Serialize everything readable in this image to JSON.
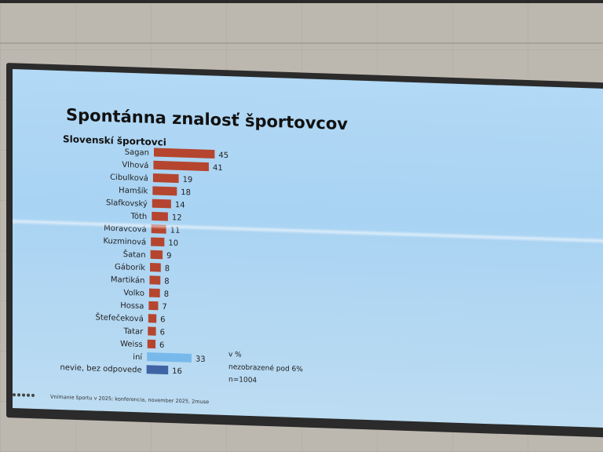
{
  "slide": {
    "title": "Spontánna znalosť športovcov",
    "subtitle": "Slovenskí športovci",
    "notes": [
      "v %",
      "nezobrazené pod 6%",
      "n=1004"
    ],
    "footer": "Vnímanie športu v 2025; konferencia, november 2025, 2muse"
  },
  "colors": {
    "primary": "#b5452f",
    "other": "#78b9ec",
    "dontknow": "#3f63a3"
  },
  "chart_data": {
    "type": "bar",
    "orientation": "horizontal",
    "categories": [
      "Sagan",
      "Vlhová",
      "Cibulková",
      "Hamšík",
      "Slafkovský",
      "Tóth",
      "Moravcová",
      "Kuzminová",
      "Šatan",
      "Gáborík",
      "Martikán",
      "Volko",
      "Hossa",
      "Štefečeková",
      "Tatar",
      "Weiss",
      "iní",
      "nevie, bez odpovede"
    ],
    "values": [
      45,
      41,
      19,
      18,
      14,
      12,
      11,
      10,
      9,
      8,
      8,
      8,
      7,
      6,
      6,
      6,
      33,
      16
    ],
    "title": "Spontánna znalosť športovcov",
    "subtitle": "Slovenskí športovci",
    "xlabel": "",
    "ylabel": "",
    "unit": "v %"
  }
}
